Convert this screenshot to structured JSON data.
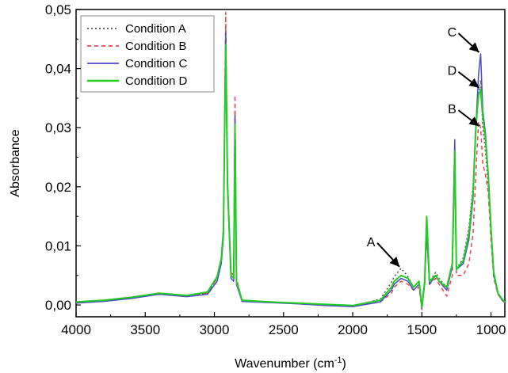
{
  "chart_data": {
    "type": "line",
    "title": "",
    "xlabel": "Wavenumber (cm",
    "xlabel_sup": "-1",
    "xlabel_close": ")",
    "ylabel": "Absorbance",
    "xlim": [
      4000,
      900
    ],
    "ylim": [
      -0.002,
      0.05
    ],
    "x_reversed": true,
    "grid": false,
    "legend_position": "top-left",
    "x_ticks": [
      4000,
      3500,
      3000,
      2500,
      2000,
      1500,
      1000
    ],
    "x_tick_labels": [
      "4000",
      "3500",
      "3000",
      "2500",
      "2000",
      "1500",
      "1000"
    ],
    "y_ticks": [
      0.0,
      0.01,
      0.02,
      0.03,
      0.04,
      0.05
    ],
    "y_tick_labels": [
      "0,00",
      "0,01",
      "0,02",
      "0,03",
      "0,04",
      "0,05"
    ],
    "series": [
      {
        "name": "Condition A",
        "color": "#555555",
        "dash": "2,3",
        "points": [
          [
            4000,
            0.0004
          ],
          [
            3800,
            0.0007
          ],
          [
            3600,
            0.0012
          ],
          [
            3400,
            0.002
          ],
          [
            3200,
            0.0016
          ],
          [
            3050,
            0.002
          ],
          [
            2980,
            0.0045
          ],
          [
            2950,
            0.0075
          ],
          [
            2935,
            0.012
          ],
          [
            2918,
            0.047
          ],
          [
            2905,
            0.02
          ],
          [
            2880,
            0.005
          ],
          [
            2860,
            0.0045
          ],
          [
            2851,
            0.033
          ],
          [
            2840,
            0.004
          ],
          [
            2800,
            0.0008
          ],
          [
            2600,
            0.0005
          ],
          [
            2400,
            0.0002
          ],
          [
            2200,
            0.0
          ],
          [
            2000,
            -0.0002
          ],
          [
            1800,
            0.001
          ],
          [
            1720,
            0.0038
          ],
          [
            1700,
            0.0048
          ],
          [
            1650,
            0.0062
          ],
          [
            1600,
            0.0048
          ],
          [
            1560,
            0.003
          ],
          [
            1520,
            0.004
          ],
          [
            1500,
            -0.0005
          ],
          [
            1480,
            0.004
          ],
          [
            1465,
            0.013
          ],
          [
            1445,
            0.004
          ],
          [
            1400,
            0.0055
          ],
          [
            1375,
            0.0045
          ],
          [
            1320,
            0.003
          ],
          [
            1280,
            0.007
          ],
          [
            1262,
            0.0255
          ],
          [
            1250,
            0.006
          ],
          [
            1200,
            0.008
          ],
          [
            1160,
            0.013
          ],
          [
            1130,
            0.02
          ],
          [
            1110,
            0.03
          ],
          [
            1090,
            0.036
          ],
          [
            1075,
            0.038
          ],
          [
            1060,
            0.03
          ],
          [
            1040,
            0.026
          ],
          [
            1020,
            0.02
          ],
          [
            1000,
            0.012
          ],
          [
            980,
            0.005
          ],
          [
            950,
            0.002
          ],
          [
            920,
            0.001
          ],
          [
            900,
            0.0005
          ]
        ]
      },
      {
        "name": "Condition B",
        "color": "#e8474c",
        "dash": "5,4",
        "points": [
          [
            4000,
            0.0004
          ],
          [
            3800,
            0.0007
          ],
          [
            3600,
            0.0012
          ],
          [
            3400,
            0.0019
          ],
          [
            3200,
            0.0015
          ],
          [
            3050,
            0.002
          ],
          [
            2980,
            0.0045
          ],
          [
            2950,
            0.008
          ],
          [
            2935,
            0.013
          ],
          [
            2918,
            0.0495
          ],
          [
            2905,
            0.021
          ],
          [
            2880,
            0.0055
          ],
          [
            2860,
            0.005
          ],
          [
            2851,
            0.0355
          ],
          [
            2840,
            0.0045
          ],
          [
            2800,
            0.0008
          ],
          [
            2600,
            0.0005
          ],
          [
            2400,
            0.0003
          ],
          [
            2200,
            0.0
          ],
          [
            2000,
            -0.0002
          ],
          [
            1800,
            0.0005
          ],
          [
            1720,
            0.002
          ],
          [
            1700,
            0.003
          ],
          [
            1650,
            0.004
          ],
          [
            1600,
            0.0035
          ],
          [
            1560,
            0.0025
          ],
          [
            1520,
            0.003
          ],
          [
            1500,
            -0.0008
          ],
          [
            1480,
            0.0035
          ],
          [
            1465,
            0.012
          ],
          [
            1445,
            0.0035
          ],
          [
            1400,
            0.0045
          ],
          [
            1375,
            0.0035
          ],
          [
            1320,
            0.0015
          ],
          [
            1280,
            0.005
          ],
          [
            1262,
            0.024
          ],
          [
            1250,
            0.005
          ],
          [
            1200,
            0.005
          ],
          [
            1160,
            0.007
          ],
          [
            1130,
            0.012
          ],
          [
            1110,
            0.022
          ],
          [
            1090,
            0.031
          ],
          [
            1075,
            0.03
          ],
          [
            1060,
            0.024
          ],
          [
            1040,
            0.022
          ],
          [
            1020,
            0.019
          ],
          [
            1000,
            0.011
          ],
          [
            980,
            0.0045
          ],
          [
            950,
            0.0018
          ],
          [
            920,
            0.0008
          ],
          [
            900,
            0.0004
          ]
        ]
      },
      {
        "name": "Condition C",
        "color": "#4a4ac8",
        "dash": "",
        "points": [
          [
            4000,
            0.0003
          ],
          [
            3800,
            0.0006
          ],
          [
            3600,
            0.0011
          ],
          [
            3400,
            0.0018
          ],
          [
            3200,
            0.0014
          ],
          [
            3050,
            0.0018
          ],
          [
            2980,
            0.004
          ],
          [
            2950,
            0.007
          ],
          [
            2935,
            0.0115
          ],
          [
            2918,
            0.046
          ],
          [
            2905,
            0.0195
          ],
          [
            2880,
            0.0045
          ],
          [
            2860,
            0.004
          ],
          [
            2851,
            0.032
          ],
          [
            2840,
            0.0035
          ],
          [
            2800,
            0.0006
          ],
          [
            2600,
            0.0004
          ],
          [
            2400,
            0.0002
          ],
          [
            2200,
            -0.0001
          ],
          [
            2000,
            -0.0003
          ],
          [
            1800,
            0.0005
          ],
          [
            1720,
            0.0025
          ],
          [
            1700,
            0.0035
          ],
          [
            1650,
            0.0045
          ],
          [
            1600,
            0.004
          ],
          [
            1560,
            0.0025
          ],
          [
            1520,
            0.0035
          ],
          [
            1500,
            -0.0006
          ],
          [
            1480,
            0.0035
          ],
          [
            1465,
            0.0125
          ],
          [
            1445,
            0.0035
          ],
          [
            1400,
            0.005
          ],
          [
            1375,
            0.004
          ],
          [
            1320,
            0.0025
          ],
          [
            1280,
            0.0065
          ],
          [
            1262,
            0.028
          ],
          [
            1250,
            0.006
          ],
          [
            1200,
            0.007
          ],
          [
            1160,
            0.011
          ],
          [
            1130,
            0.018
          ],
          [
            1110,
            0.03
          ],
          [
            1090,
            0.039
          ],
          [
            1075,
            0.0425
          ],
          [
            1060,
            0.033
          ],
          [
            1040,
            0.029
          ],
          [
            1020,
            0.022
          ],
          [
            1000,
            0.013
          ],
          [
            980,
            0.005
          ],
          [
            950,
            0.002
          ],
          [
            920,
            0.0008
          ],
          [
            900,
            0.0004
          ]
        ]
      },
      {
        "name": "Condition D",
        "color": "#22cc22",
        "dash": "",
        "points": [
          [
            4000,
            0.0005
          ],
          [
            3800,
            0.0008
          ],
          [
            3600,
            0.0013
          ],
          [
            3400,
            0.002
          ],
          [
            3200,
            0.0016
          ],
          [
            3050,
            0.0022
          ],
          [
            2980,
            0.0048
          ],
          [
            2950,
            0.0078
          ],
          [
            2935,
            0.0125
          ],
          [
            2918,
            0.044
          ],
          [
            2905,
            0.0205
          ],
          [
            2880,
            0.005
          ],
          [
            2860,
            0.0045
          ],
          [
            2851,
            0.0305
          ],
          [
            2840,
            0.004
          ],
          [
            2800,
            0.0008
          ],
          [
            2600,
            0.0005
          ],
          [
            2400,
            0.0003
          ],
          [
            2200,
            0.0001
          ],
          [
            2000,
            -0.0001
          ],
          [
            1800,
            0.0008
          ],
          [
            1720,
            0.003
          ],
          [
            1700,
            0.004
          ],
          [
            1650,
            0.005
          ],
          [
            1600,
            0.0045
          ],
          [
            1560,
            0.003
          ],
          [
            1520,
            0.004
          ],
          [
            1500,
            -0.0004
          ],
          [
            1480,
            0.004
          ],
          [
            1465,
            0.015
          ],
          [
            1445,
            0.004
          ],
          [
            1400,
            0.005
          ],
          [
            1375,
            0.004
          ],
          [
            1320,
            0.003
          ],
          [
            1280,
            0.007
          ],
          [
            1262,
            0.026
          ],
          [
            1250,
            0.006
          ],
          [
            1200,
            0.0075
          ],
          [
            1160,
            0.012
          ],
          [
            1130,
            0.019
          ],
          [
            1110,
            0.03
          ],
          [
            1090,
            0.0355
          ],
          [
            1075,
            0.0365
          ],
          [
            1060,
            0.032
          ],
          [
            1040,
            0.028
          ],
          [
            1020,
            0.022
          ],
          [
            1000,
            0.013
          ],
          [
            980,
            0.0055
          ],
          [
            950,
            0.002
          ],
          [
            920,
            0.001
          ],
          [
            900,
            0.0005
          ]
        ]
      }
    ],
    "annotations": [
      {
        "label": "A",
        "target": [
          1650,
          0.0062
        ]
      },
      {
        "label": "B",
        "target": [
          1075,
          0.03
        ]
      },
      {
        "label": "C",
        "target": [
          1075,
          0.0425
        ]
      },
      {
        "label": "D",
        "target": [
          1075,
          0.0365
        ]
      }
    ]
  }
}
